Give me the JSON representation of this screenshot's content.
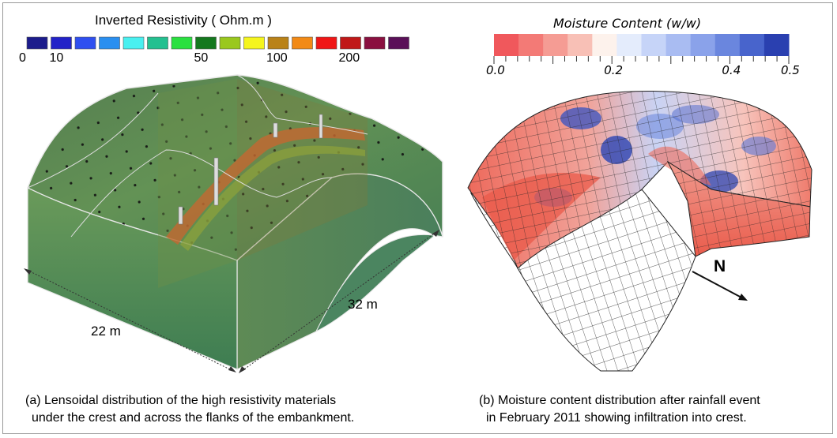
{
  "panel_a": {
    "legend_title": "Inverted Resistivity  ( Ohm.m )",
    "legend_colors": [
      "#1c1c8c",
      "#2222c8",
      "#2f4ff0",
      "#2a8ff0",
      "#49f0f0",
      "#24c090",
      "#2ae040",
      "#14781e",
      "#9ac81e",
      "#f5f51e",
      "#b98218",
      "#f28a16",
      "#f01616",
      "#c01818",
      "#8a1040",
      "#5a1058"
    ],
    "ticks": [
      {
        "label": "0",
        "pos": 0
      },
      {
        "label": "10",
        "pos": 1
      },
      {
        "label": "50",
        "pos": 7
      },
      {
        "label": "100",
        "pos": 10
      },
      {
        "label": "200",
        "pos": 13
      }
    ],
    "dim_width": "22 m",
    "dim_length": "32 m",
    "caption_line1": "(a) Lensoidal distribution of the high resistivity materials",
    "caption_line2": "under the crest and across the flanks of the embankment."
  },
  "panel_b": {
    "legend_title": "Moisture Content  (w/w)",
    "legend_colors": [
      "#f0585c",
      "#f37a76",
      "#f59c94",
      "#f8c0b6",
      "#fdf2ec",
      "#e4ecfc",
      "#c6d4f8",
      "#a9bcf2",
      "#8aa2ea",
      "#6a86de",
      "#4864cc",
      "#2a40b0"
    ],
    "ticks": [
      {
        "label": "0.0",
        "pos": 0
      },
      {
        "label": "0.2",
        "pos": 0.4
      },
      {
        "label": "0.4",
        "pos": 0.8
      },
      {
        "label": "0.5",
        "pos": 1.0
      }
    ],
    "north_label": "N",
    "caption_line1": "(b)  Moisture content distribution after rainfall event",
    "caption_line2": "in February 2011 showing infiltration into crest."
  }
}
